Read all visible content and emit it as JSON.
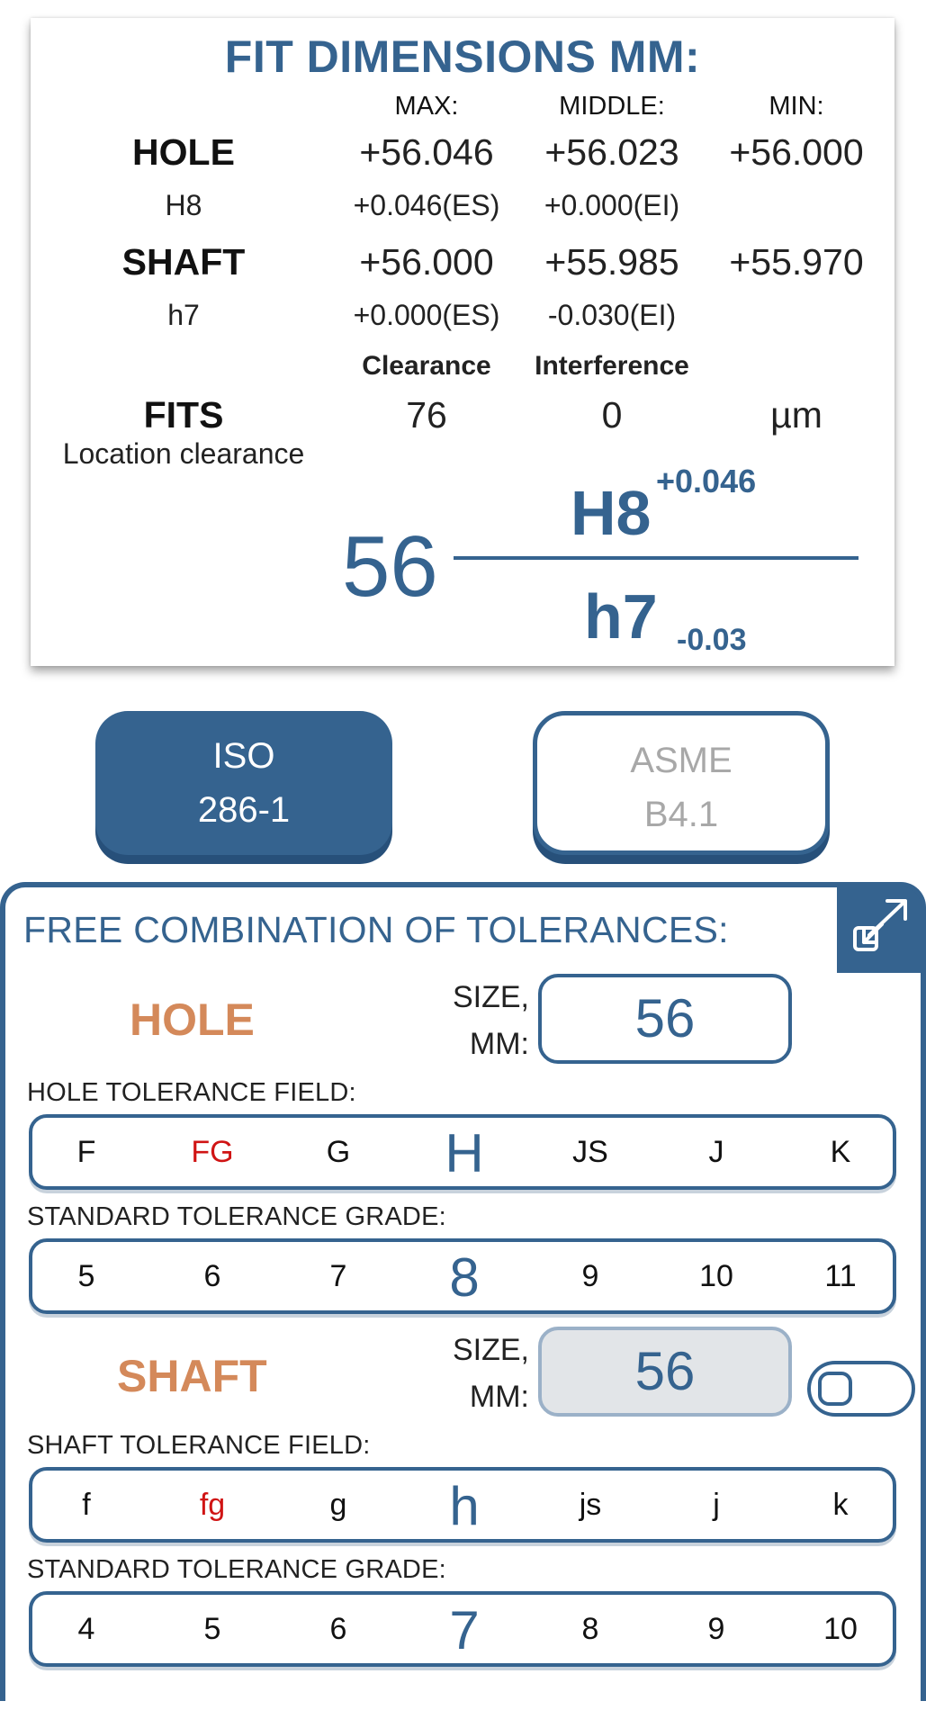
{
  "fit_card": {
    "title": "FIT DIMENSIONS MM:",
    "columns": {
      "max": "MAX:",
      "middle": "MIDDLE:",
      "min": "MIN:"
    },
    "hole": {
      "label": "HOLE",
      "code": "H8",
      "max": "+56.046",
      "middle": "+56.023",
      "min": "+56.000",
      "es": "+0.046(ES)",
      "ei": "+0.000(EI)"
    },
    "shaft": {
      "label": "SHAFT",
      "code": "h7",
      "max": "+56.000",
      "middle": "+55.985",
      "min": "+55.970",
      "es": "+0.000(ES)",
      "ei": "-0.030(EI)"
    },
    "fits": {
      "label": "FITS",
      "type": "Location clearance",
      "clearance_label": "Clearance",
      "interference_label": "Interference",
      "clearance": "76",
      "interference": "0",
      "unit": "µm"
    },
    "designation": {
      "size": "56",
      "hole_code": "H8",
      "hole_dev": "+0.046",
      "shaft_code": "h7",
      "shaft_dev": "-0.03"
    }
  },
  "standards": {
    "iso": {
      "line1": "ISO",
      "line2": "286-1",
      "selected": true
    },
    "asme": {
      "line1": "ASME",
      "line2": "B4.1",
      "selected": false
    }
  },
  "panel": {
    "title": "FREE COMBINATION OF TOLERANCES:",
    "expand_icon": "expand-arrows-icon",
    "hole": {
      "label": "HOLE",
      "size_label_1": "SIZE,",
      "size_label_2": "MM:",
      "size": "56",
      "field_label": "HOLE TOLERANCE FIELD:",
      "fields": [
        "F",
        "FG",
        "G",
        "H",
        "JS",
        "J",
        "K"
      ],
      "field_selected": "H",
      "grade_label": "STANDARD TOLERANCE GRADE:",
      "grades": [
        "5",
        "6",
        "7",
        "8",
        "9",
        "10",
        "11"
      ],
      "grade_selected": "8"
    },
    "shaft": {
      "label": "SHAFT",
      "size_label_1": "SIZE,",
      "size_label_2": "MM:",
      "size": "56",
      "field_label": "SHAFT TOLERANCE FIELD:",
      "fields": [
        "f",
        "fg",
        "g",
        "h",
        "js",
        "j",
        "k"
      ],
      "field_selected": "h",
      "grade_label": "STANDARD TOLERANCE GRADE:",
      "grades": [
        "4",
        "5",
        "6",
        "7",
        "8",
        "9",
        "10"
      ],
      "grade_selected": "7"
    },
    "highlight_color": "#d01414",
    "accent_color": "#35638f",
    "part_label_color": "#d4895a"
  }
}
